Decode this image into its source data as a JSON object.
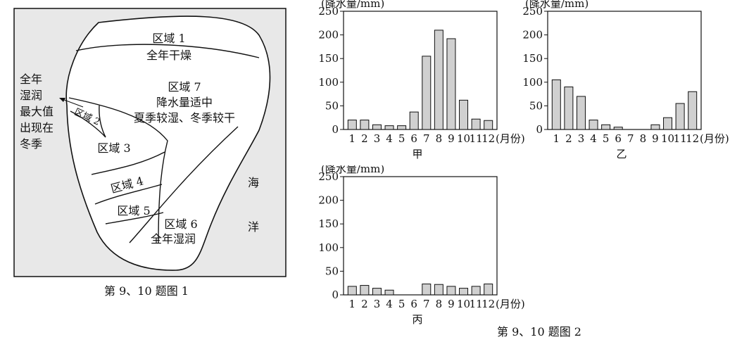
{
  "figure1": {
    "caption": "第 9、10 题图 1",
    "regions": [
      {
        "lines": [
          "区域 1",
          "全年干燥"
        ]
      },
      {
        "lines": [
          "区域 7",
          "降水量适中",
          "夏季较湿、冬季较干"
        ]
      },
      {
        "lines": [
          "区域 2"
        ]
      },
      {
        "lines": [
          "区域 3"
        ]
      },
      {
        "lines": [
          "区域 4"
        ]
      },
      {
        "lines": [
          "区域 5"
        ]
      },
      {
        "lines": [
          "区域 6",
          "全年湿润"
        ]
      }
    ],
    "side_note": [
      "全年",
      "湿润",
      "最大值",
      "出现在",
      "冬季"
    ],
    "ocean": [
      "海",
      "洋"
    ]
  },
  "figure2": {
    "caption": "第 9、10 题图 2"
  },
  "chart_data": [
    {
      "type": "bar",
      "title": "甲",
      "ylabel": "(降水量/mm)",
      "xlabel": "(月份)",
      "categories": [
        "1",
        "2",
        "3",
        "4",
        "5",
        "6",
        "7",
        "8",
        "9",
        "10",
        "11",
        "12"
      ],
      "values": [
        20,
        20,
        10,
        8,
        8,
        37,
        155,
        210,
        192,
        62,
        22,
        19
      ],
      "ylim": [
        0,
        250
      ],
      "yticks": [
        "0",
        "50",
        "100",
        "150",
        "200",
        "250"
      ]
    },
    {
      "type": "bar",
      "title": "乙",
      "ylabel": "(降水量/mm)",
      "xlabel": "(月份)",
      "categories": [
        "1",
        "2",
        "3",
        "4",
        "5",
        "6",
        "7",
        "8",
        "9",
        "10",
        "11",
        "12"
      ],
      "values": [
        105,
        90,
        70,
        20,
        10,
        5,
        0,
        0,
        10,
        25,
        55,
        80
      ],
      "ylim": [
        0,
        250
      ],
      "yticks": [
        "0",
        "50",
        "100",
        "150",
        "200",
        "250"
      ]
    },
    {
      "type": "bar",
      "title": "丙",
      "ylabel": "(降水量/mm)",
      "xlabel": "(月份)",
      "categories": [
        "1",
        "2",
        "3",
        "4",
        "5",
        "6",
        "7",
        "8",
        "9",
        "10",
        "11",
        "12"
      ],
      "values": [
        18,
        20,
        14,
        10,
        0,
        0,
        23,
        22,
        18,
        14,
        18,
        23
      ],
      "ylim": [
        0,
        250
      ],
      "yticks": [
        "0",
        "50",
        "100",
        "150",
        "200",
        "250"
      ]
    }
  ]
}
